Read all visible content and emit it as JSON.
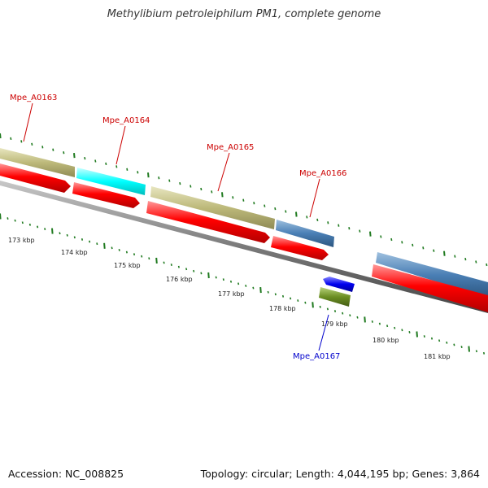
{
  "title": "Methylibium petroleiphilum PM1, complete genome",
  "footer": {
    "accession": "Accession: NC_008825",
    "summary": "Topology: circular; Length: 4,044,195 bp; Genes: 3,864"
  },
  "colors": {
    "label_forward": "#cc0000",
    "label_reverse": "#0000cc",
    "cds": "#ff0000",
    "backbone": "#7a7a7a",
    "tick": "#1f7a1f",
    "cog_tan": "#bdb97a",
    "cog_cyan": "#00ffff",
    "cog_steelblue": "#4a7fb5",
    "cog_blue": "#0000ee",
    "cog_olive": "#6b8e23"
  },
  "genes": [
    {
      "label": "Mpe_A0163",
      "strand": "+",
      "color": "cog_tan"
    },
    {
      "label": "Mpe_A0164",
      "strand": "+",
      "color": "cog_cyan"
    },
    {
      "label": "Mpe_A0165",
      "strand": "+",
      "color": "cog_tan"
    },
    {
      "label": "Mpe_A0166",
      "strand": "+",
      "color": "cog_steelblue"
    },
    {
      "label": "Mpe_A0167",
      "strand": "-",
      "color": "cog_blue"
    },
    {
      "label": "",
      "strand": "+",
      "color": "cog_steelblue"
    }
  ],
  "ticks": [
    "173 kbp",
    "174 kbp",
    "175 kbp",
    "176 kbp",
    "177 kbp",
    "178 kbp",
    "179 kbp",
    "180 kbp",
    "181 kbp"
  ]
}
